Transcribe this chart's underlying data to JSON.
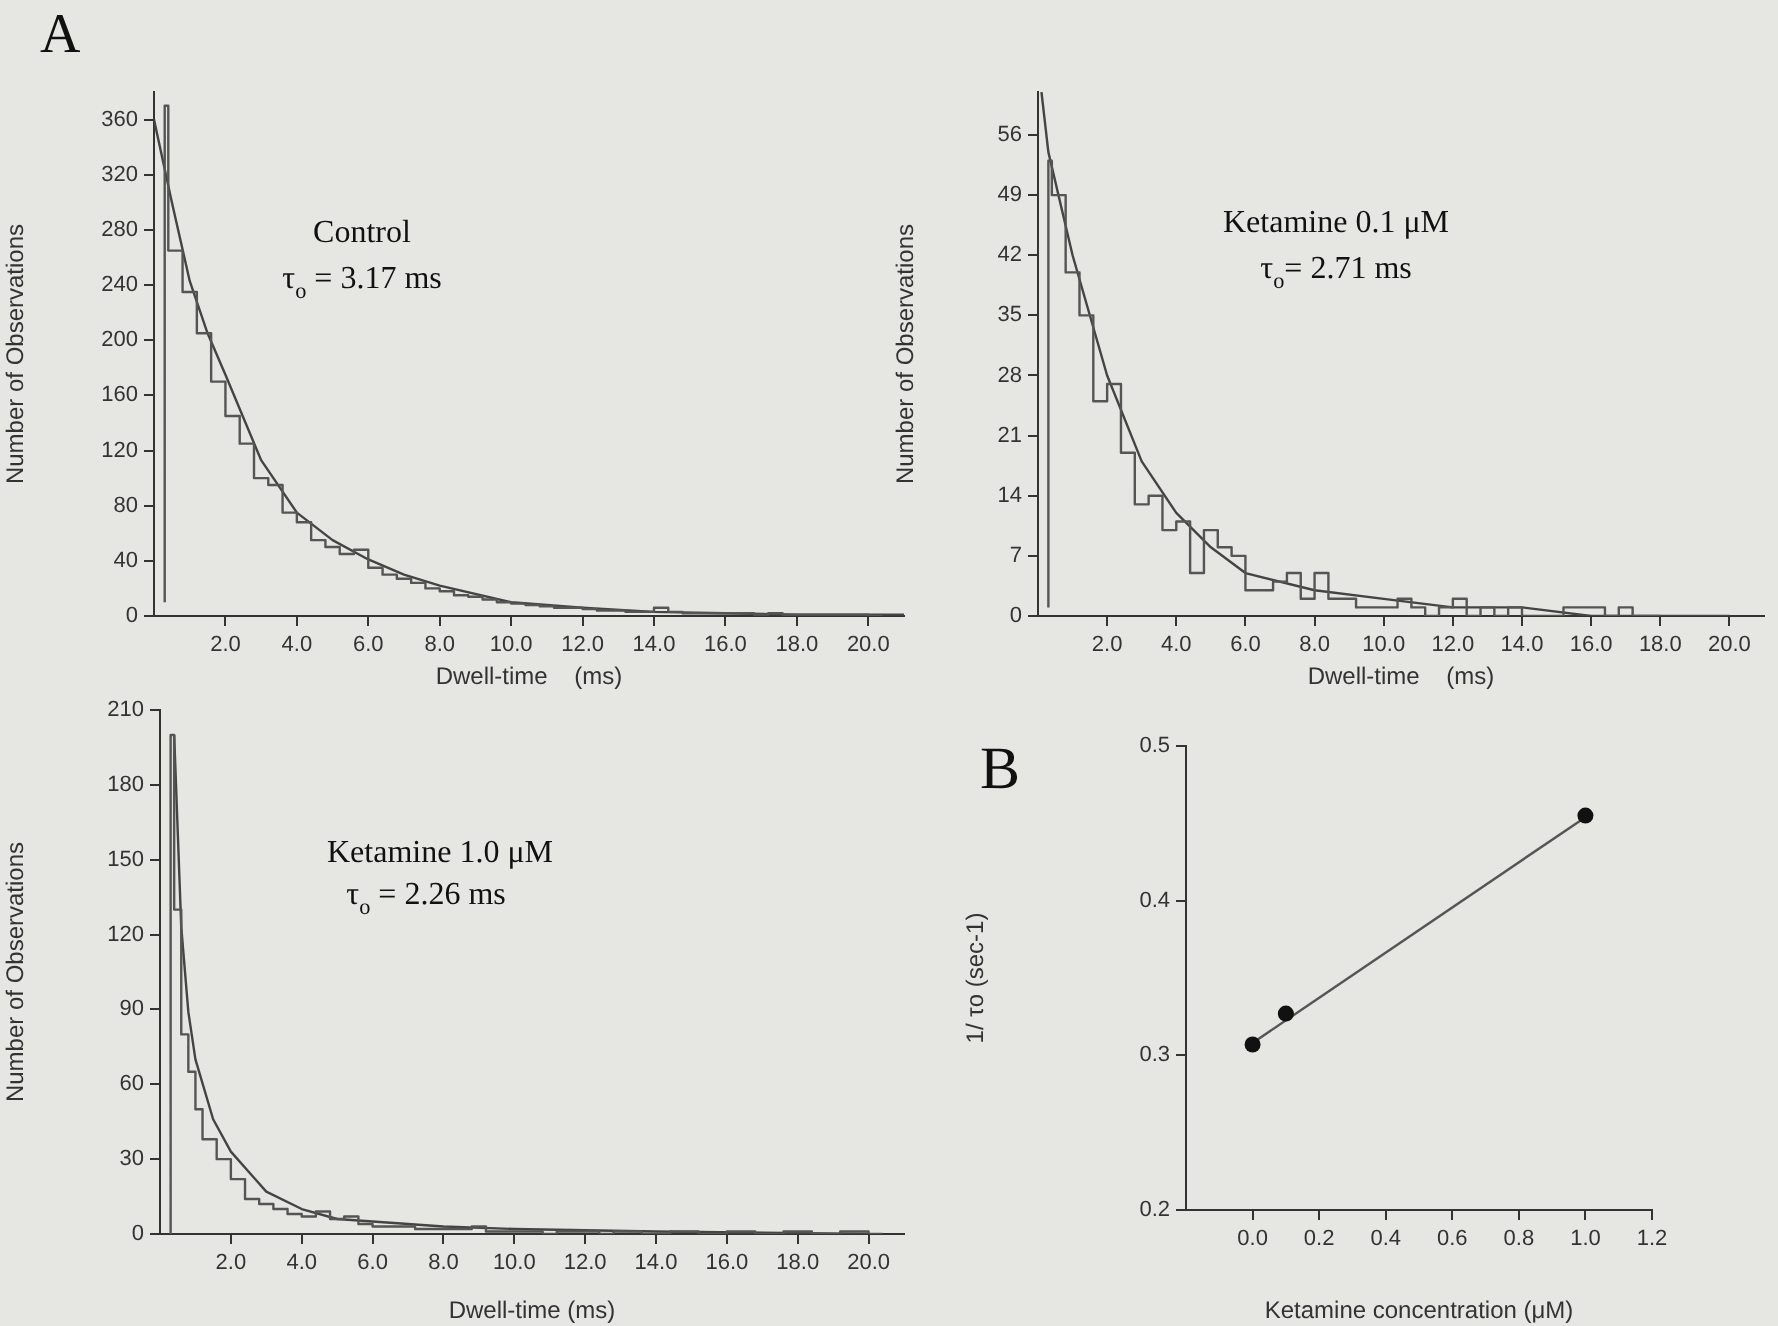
{
  "chart_data": [
    {
      "type": "step",
      "xlabel": "Dwell-time    (ms)",
      "ylabel": "Number of Observations",
      "annotations": [
        "A",
        "Control",
        "τ$_{o}$ = 3.17 ms"
      ],
      "xlim": [
        0,
        21
      ],
      "ylim": [
        0,
        380
      ],
      "xticks": [
        {
          "value": 2,
          "label": "2.0"
        },
        {
          "value": 4,
          "label": "4.0"
        },
        {
          "value": 6,
          "label": "6.0"
        },
        {
          "value": 8,
          "label": "8.0"
        },
        {
          "value": 10,
          "label": "10.0"
        },
        {
          "value": 12,
          "label": "12.0"
        },
        {
          "value": 14,
          "label": "14.0"
        },
        {
          "value": 16,
          "label": "16.0"
        },
        {
          "value": 18,
          "label": "18.0"
        },
        {
          "value": 20,
          "label": "20.0"
        }
      ],
      "yticks": [
        0,
        40,
        80,
        120,
        160,
        200,
        240,
        280,
        320,
        360
      ],
      "grid": false,
      "legend": false,
      "marker": "none",
      "series": [
        {
          "color": "#555555",
          "x": [
            0.3,
            0.4,
            0.8,
            1.2,
            1.6,
            2.0,
            2.4,
            2.8,
            3.2,
            3.6,
            4.0,
            4.4,
            4.8,
            5.2,
            5.6,
            6.0,
            6.4,
            6.8,
            7.2,
            7.6,
            8.0,
            8.4,
            8.8,
            9.2,
            9.6,
            10.0,
            10.4,
            10.8,
            11.2,
            11.6,
            12.0,
            12.4,
            12.8,
            13.2,
            13.6,
            14.0,
            14.4,
            14.8,
            15.2,
            15.6,
            16.0,
            16.4,
            16.8,
            17.2,
            17.6,
            18.0,
            18.4,
            18.8,
            19.2,
            19.6,
            20.0,
            20.4
          ],
          "values": [
            10,
            370,
            265,
            235,
            205,
            170,
            145,
            125,
            100,
            95,
            75,
            68,
            55,
            50,
            45,
            48,
            35,
            30,
            27,
            24,
            20,
            18,
            15,
            14,
            12,
            10,
            9,
            8,
            7,
            6,
            6,
            5,
            4,
            4,
            3,
            3,
            6,
            3,
            2,
            2,
            2,
            2,
            2,
            1,
            2,
            1,
            1,
            1,
            1,
            1,
            1,
            0
          ]
        },
        {
          "type": "line",
          "color": "#444444",
          "x": [
            0,
            0.5,
            1,
            1.5,
            2,
            3,
            4,
            5,
            6,
            7,
            8,
            10,
            12,
            14,
            16,
            18,
            20,
            21
          ],
          "values": [
            360,
            300,
            243,
            205,
            175,
            113,
            75,
            55,
            41,
            30,
            22,
            10,
            6,
            3,
            2,
            1,
            1,
            1
          ]
        }
      ]
    },
    {
      "type": "step",
      "xlabel": "Dwell-time    (ms)",
      "ylabel": "Number of Observations",
      "annotations": [
        "Ketamine 0.1 μM",
        "τ$_{o}$= 2.71 ms"
      ],
      "xlim": [
        0,
        21
      ],
      "ylim": [
        0,
        61
      ],
      "xticks": [
        {
          "value": 2,
          "label": "2.0"
        },
        {
          "value": 4,
          "label": "4.0"
        },
        {
          "value": 6,
          "label": "6.0"
        },
        {
          "value": 8,
          "label": "8.0"
        },
        {
          "value": 10,
          "label": "10.0"
        },
        {
          "value": 12,
          "label": "12.0"
        },
        {
          "value": 14,
          "label": "14.0"
        },
        {
          "value": 16,
          "label": "16.0"
        },
        {
          "value": 18,
          "label": "18.0"
        },
        {
          "value": 20,
          "label": "20.0"
        }
      ],
      "yticks": [
        0,
        7,
        14,
        21,
        28,
        35,
        42,
        49,
        56
      ],
      "grid": false,
      "legend": false,
      "marker": "none",
      "series": [
        {
          "color": "#555555",
          "x": [
            0.3,
            0.4,
            0.8,
            1.2,
            1.6,
            2.0,
            2.4,
            2.8,
            3.2,
            3.6,
            4.0,
            4.4,
            4.8,
            5.2,
            5.6,
            6.0,
            6.4,
            6.8,
            7.2,
            7.6,
            8.0,
            8.4,
            8.8,
            9.2,
            9.6,
            10.0,
            10.4,
            10.8,
            11.2,
            11.6,
            12.0,
            12.4,
            12.8,
            13.2,
            13.6,
            14.0,
            14.4,
            14.8,
            15.2,
            15.6,
            16.0,
            16.4,
            16.8,
            17.2,
            17.6,
            18.0
          ],
          "values": [
            1,
            53,
            49,
            40,
            35,
            25,
            27,
            19,
            13,
            14,
            10,
            11,
            5,
            10,
            8,
            7,
            3,
            3,
            4,
            5,
            2,
            5,
            2,
            2,
            1,
            1,
            1,
            2,
            1,
            0,
            1,
            2,
            0,
            1,
            0,
            1,
            0,
            0,
            0,
            1,
            1,
            1,
            0,
            1,
            0,
            0
          ]
        },
        {
          "type": "line",
          "color": "#444444",
          "x": [
            0.1,
            0.3,
            1,
            2,
            3,
            4,
            5,
            6,
            8,
            10,
            12,
            14,
            16,
            20
          ],
          "values": [
            61,
            54,
            42,
            28,
            18,
            12,
            8,
            5,
            3,
            2,
            1,
            1,
            0,
            0
          ]
        }
      ]
    },
    {
      "type": "step",
      "xlabel": "Dwell-time (ms)",
      "ylabel": "Number of Observations",
      "annotations": [
        "Ketamine 1.0 μM",
        "τ$_{o}$ = 2.26 ms"
      ],
      "xlim": [
        0,
        21
      ],
      "ylim": [
        0,
        210
      ],
      "xticks": [
        {
          "value": 2,
          "label": "2.0"
        },
        {
          "value": 4,
          "label": "4.0"
        },
        {
          "value": 6,
          "label": "6.0"
        },
        {
          "value": 8,
          "label": "8.0"
        },
        {
          "value": 10,
          "label": "10.0"
        },
        {
          "value": 12,
          "label": "12.0"
        },
        {
          "value": 14,
          "label": "14.0"
        },
        {
          "value": 16,
          "label": "16.0"
        },
        {
          "value": 18,
          "label": "18.0"
        },
        {
          "value": 20,
          "label": "20.0"
        }
      ],
      "yticks": [
        0,
        30,
        60,
        90,
        120,
        150,
        180,
        210
      ],
      "grid": false,
      "legend": false,
      "marker": "none",
      "series": [
        {
          "color": "#555555",
          "x": [
            0.3,
            0.4,
            0.6,
            0.8,
            1.0,
            1.2,
            1.6,
            2.0,
            2.4,
            2.8,
            3.2,
            3.6,
            4.0,
            4.4,
            4.8,
            5.2,
            5.6,
            6.0,
            6.4,
            6.8,
            7.2,
            7.6,
            8.0,
            8.4,
            8.8,
            9.2,
            9.6,
            10.0,
            10.4,
            10.8,
            11.2,
            11.6,
            12.0,
            12.4,
            12.8,
            13.6,
            14.4,
            15.2,
            16.0,
            16.8,
            17.6,
            18.4,
            19.2,
            20.0,
            20.4
          ],
          "values": [
            0,
            200,
            130,
            80,
            65,
            50,
            38,
            30,
            22,
            14,
            12,
            10,
            8,
            7,
            9,
            6,
            7,
            4,
            3,
            3,
            3,
            2,
            2,
            2,
            2,
            3,
            1,
            1,
            1,
            1,
            0,
            1,
            1,
            1,
            0,
            1,
            0,
            1,
            0,
            1,
            0,
            1,
            0,
            1,
            0
          ]
        },
        {
          "type": "line",
          "color": "#444444",
          "x": [
            0.4,
            0.6,
            0.8,
            1.0,
            1.5,
            2.0,
            3.0,
            4.0,
            5.0,
            6.0,
            8.0,
            10.0,
            14.0,
            20.0
          ],
          "values": [
            200,
            123,
            89,
            70,
            46,
            33,
            17,
            10,
            6,
            5,
            3,
            2,
            1,
            0
          ]
        }
      ]
    },
    {
      "type": "scatter",
      "xlabel": "Ketamine concentration (μM)",
      "ylabel": "1/ τo (sec-1)",
      "annotations": [
        "B"
      ],
      "xlim": [
        -0.2,
        1.2
      ],
      "ylim": [
        0.2,
        0.5
      ],
      "xticks": [
        {
          "value": 0,
          "label": "0.0"
        },
        {
          "value": 0.2,
          "label": "0.2"
        },
        {
          "value": 0.4,
          "label": "0.4"
        },
        {
          "value": 0.6,
          "label": "0.6"
        },
        {
          "value": 0.8,
          "label": "0.8"
        },
        {
          "value": 1,
          "label": "1.0"
        },
        {
          "value": 1.2,
          "label": "1.2"
        }
      ],
      "yticks": [
        {
          "value": 0.2,
          "label": "0.2"
        },
        {
          "value": 0.3,
          "label": "0.3"
        },
        {
          "value": 0.4,
          "label": "0.4"
        },
        {
          "value": 0.5,
          "label": "0.5"
        }
      ],
      "grid": false,
      "legend": false,
      "series": [
        {
          "color": "#111111",
          "marker": "circle",
          "x": [
            0,
            0.1,
            1.0
          ],
          "values": [
            0.307,
            0.327,
            0.455
          ]
        },
        {
          "type": "line",
          "color": "#555555",
          "marker": "none",
          "x": [
            0,
            1.0
          ],
          "values": [
            0.308,
            0.454
          ]
        }
      ]
    }
  ]
}
